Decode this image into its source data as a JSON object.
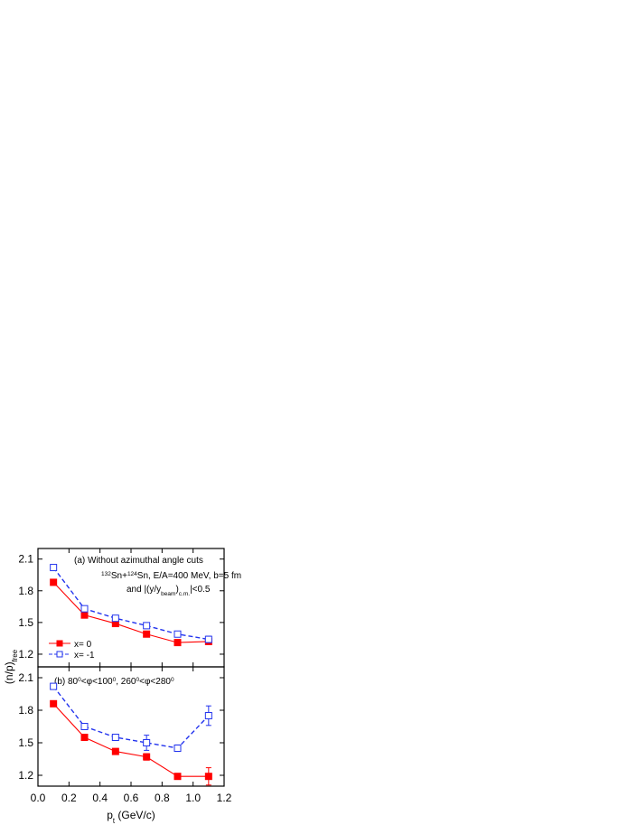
{
  "chart_data": [
    {
      "type": "line",
      "ylabel": [
        {
          "text": "(n/p)",
          "pos": "base"
        },
        {
          "text": "free",
          "pos": "sub"
        }
      ],
      "annotations": [
        [
          {
            "text": "(a)  Without azimuthal angle cuts",
            "pos": "base"
          }
        ],
        [
          {
            "text": "132",
            "pos": "sup"
          },
          {
            "text": "Sn+",
            "pos": "base"
          },
          {
            "text": "124",
            "pos": "sup"
          },
          {
            "text": "Sn, E/A=400 MeV, b=5 fm",
            "pos": "base"
          }
        ],
        [
          {
            "text": "and |(y/y",
            "pos": "base"
          },
          {
            "text": "beam",
            "pos": "sub"
          },
          {
            "text": ")",
            "pos": "base"
          },
          {
            "text": "c.m.",
            "pos": "sub"
          },
          {
            "text": "|<0.5",
            "pos": "base"
          }
        ]
      ],
      "x": [
        0.1,
        0.3,
        0.5,
        0.7,
        0.9,
        1.1
      ],
      "xlim": [
        0,
        1.2
      ],
      "ylim": [
        1.08,
        2.2
      ],
      "yticks": [
        1.2,
        1.5,
        1.8,
        2.1
      ],
      "legend": "lower left",
      "series": [
        {
          "name": "x= 0",
          "color": "#ff0000",
          "marker": "filled-square",
          "dash": "solid",
          "values": [
            1.88,
            1.57,
            1.49,
            1.39,
            1.31,
            1.32
          ],
          "errors": [
            null,
            null,
            0.01,
            null,
            null,
            0.02
          ]
        },
        {
          "name": "x= -1",
          "color": "#2233ee",
          "marker": "open-square",
          "dash": "dashed",
          "values": [
            2.02,
            1.63,
            1.54,
            1.47,
            1.39,
            1.34
          ],
          "errors": [
            0.01,
            0.01,
            0.01,
            0.01,
            0.02,
            0.03
          ]
        }
      ]
    },
    {
      "type": "line",
      "annotations": [
        [
          {
            "text": "(b)  80",
            "pos": "base"
          },
          {
            "text": "0",
            "pos": "sup"
          },
          {
            "text": "<φ<100",
            "pos": "base"
          },
          {
            "text": "0",
            "pos": "sup"
          },
          {
            "text": ", 260",
            "pos": "base"
          },
          {
            "text": "0",
            "pos": "sup"
          },
          {
            "text": "<φ<280",
            "pos": "base"
          },
          {
            "text": "0",
            "pos": "sup"
          }
        ]
      ],
      "xlabel": [
        {
          "text": "p",
          "pos": "base"
        },
        {
          "text": "t",
          "pos": "sub"
        },
        {
          "text": " (GeV/c)",
          "pos": "base"
        }
      ],
      "x": [
        0.1,
        0.3,
        0.5,
        0.7,
        0.9,
        1.1
      ],
      "xlim": [
        0,
        1.2
      ],
      "ylim": [
        1.1,
        2.2
      ],
      "yticks": [
        1.2,
        1.5,
        1.8,
        2.1
      ],
      "xticks": [
        {
          "value": 0,
          "label": "0.0"
        },
        0.2,
        0.4,
        0.6,
        0.8,
        {
          "value": 1,
          "label": "1.0"
        },
        1.2
      ],
      "series": [
        {
          "color": "#ff0000",
          "marker": "filled-square",
          "dash": "solid",
          "values": [
            1.86,
            1.55,
            1.42,
            1.37,
            1.19,
            1.19
          ],
          "errors": [
            null,
            null,
            0.02,
            0.03,
            null,
            0.08
          ]
        },
        {
          "color": "#2233ee",
          "marker": "open-square",
          "dash": "dashed",
          "values": [
            2.02,
            1.65,
            1.55,
            1.5,
            1.45,
            1.75
          ],
          "errors": [
            0.01,
            0.01,
            0.01,
            0.07,
            0.03,
            0.09
          ]
        }
      ]
    }
  ]
}
